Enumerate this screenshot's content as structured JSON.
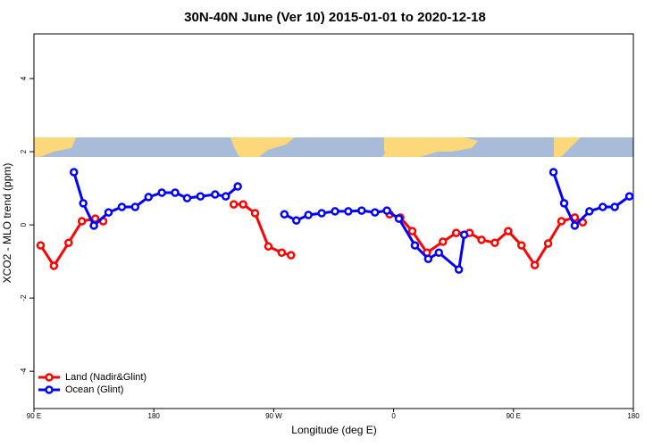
{
  "chart_data": {
    "type": "line",
    "title": "30N-40N June (Ver 10)   2015-01-01 to 2020-12-18",
    "x_label": "Longitude (deg E)",
    "y_label": "XCO2 - MLO trend (ppm)",
    "xlim": [
      90,
      540
    ],
    "ylim": [
      -5.02,
      5.22
    ],
    "xticks": [
      {
        "value": 90,
        "label": "90 E"
      },
      180,
      {
        "value": 270,
        "label": "90 W"
      },
      {
        "value": 360,
        "label": "0"
      },
      {
        "value": 450,
        "label": "90 E"
      },
      {
        "value": 540,
        "label": "180"
      }
    ],
    "yticks": [
      -4,
      -2,
      0,
      2,
      4
    ],
    "legend": "bottom-left",
    "series": [
      {
        "name": "Land (Nadir&Glint)",
        "color": "#ff0000",
        "x": [
          95,
          105,
          116,
          126,
          136,
          142,
          null,
          240,
          247,
          256,
          266,
          276,
          283,
          null,
          357,
          365,
          374,
          385,
          397,
          407,
          417,
          426,
          436,
          446,
          456,
          466,
          476,
          486,
          496,
          502
        ],
        "values": [
          -0.56,
          -1.12,
          -0.49,
          0.1,
          0.17,
          0.1,
          null,
          0.56,
          0.56,
          0.32,
          -0.59,
          -0.76,
          -0.83,
          null,
          0.29,
          0.2,
          -0.17,
          -0.76,
          -0.46,
          -0.22,
          -0.22,
          -0.41,
          -0.49,
          -0.17,
          -0.56,
          -1.1,
          -0.51,
          0.1,
          0.2,
          0.07
        ]
      },
      {
        "name": "Ocean (Glint)",
        "color": "#0000ff",
        "x": [
          120,
          127,
          135,
          146,
          156,
          166,
          176,
          186,
          196,
          205,
          215,
          226,
          234,
          243,
          null,
          278,
          287,
          296,
          306,
          316,
          326,
          336,
          346,
          355,
          364,
          376,
          386,
          394,
          409,
          413,
          null,
          480,
          488,
          496,
          507,
          517,
          526,
          537
        ],
        "values": [
          1.44,
          0.59,
          -0.02,
          0.34,
          0.49,
          0.49,
          0.76,
          0.88,
          0.88,
          0.73,
          0.78,
          0.83,
          0.78,
          1.05,
          null,
          0.29,
          0.12,
          0.27,
          0.32,
          0.37,
          0.37,
          0.39,
          0.34,
          0.39,
          0.17,
          -0.56,
          -0.93,
          -0.76,
          -1.22,
          -0.27,
          null,
          1.44,
          0.59,
          -0.02,
          0.37,
          0.49,
          0.49,
          0.78
        ]
      }
    ]
  }
}
